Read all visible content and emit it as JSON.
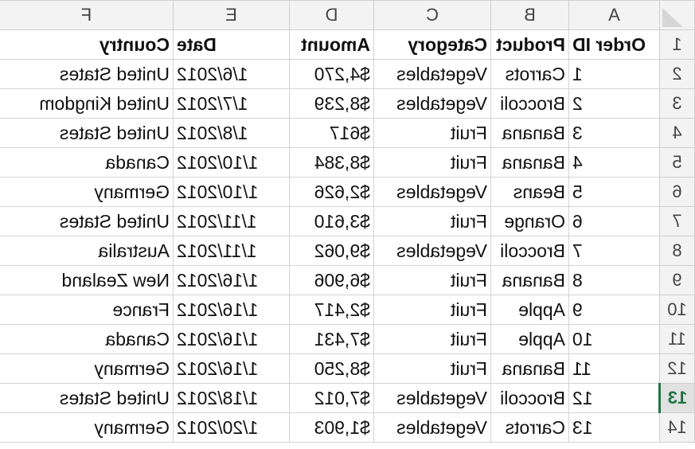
{
  "columns": [
    "A",
    "B",
    "C",
    "D",
    "E",
    "F"
  ],
  "selected_row": "13",
  "rows": [
    {
      "n": "1",
      "cells": [
        "Order ID",
        "Product",
        "Category",
        "Amount",
        "Date",
        "Country"
      ]
    },
    {
      "n": "2",
      "cells": [
        "1",
        "Carrots",
        "Vegetables",
        "$4,270",
        "1/6/2012",
        "United States"
      ]
    },
    {
      "n": "3",
      "cells": [
        "2",
        "Broccoli",
        "Vegetables",
        "$8,239",
        "1/7/2012",
        "United Kingdom"
      ]
    },
    {
      "n": "4",
      "cells": [
        "3",
        "Banana",
        "Fruit",
        "$617",
        "1/8/2012",
        "United States"
      ]
    },
    {
      "n": "5",
      "cells": [
        "4",
        "Banana",
        "Fruit",
        "$8,384",
        "1/10/2012",
        "Canada"
      ]
    },
    {
      "n": "6",
      "cells": [
        "5",
        "Beans",
        "Vegetables",
        "$2,626",
        "1/10/2012",
        "Germany"
      ]
    },
    {
      "n": "7",
      "cells": [
        "6",
        "Orange",
        "Fruit",
        "$3,610",
        "1/11/2012",
        "United States"
      ]
    },
    {
      "n": "8",
      "cells": [
        "7",
        "Broccoli",
        "Vegetables",
        "$9,062",
        "1/11/2012",
        "Australia"
      ]
    },
    {
      "n": "9",
      "cells": [
        "8",
        "Banana",
        "Fruit",
        "$6,906",
        "1/16/2012",
        "New Zealand"
      ]
    },
    {
      "n": "10",
      "cells": [
        "9",
        "Apple",
        "Fruit",
        "$2,417",
        "1/16/2012",
        "France"
      ]
    },
    {
      "n": "11",
      "cells": [
        "10",
        "Apple",
        "Fruit",
        "$7,431",
        "1/16/2012",
        "Canada"
      ]
    },
    {
      "n": "12",
      "cells": [
        "11",
        "Banana",
        "Fruit",
        "$8,250",
        "1/16/2012",
        "Germany"
      ]
    },
    {
      "n": "13",
      "cells": [
        "12",
        "Broccoli",
        "Vegetables",
        "$7,012",
        "1/18/2012",
        "United States"
      ]
    },
    {
      "n": "14",
      "cells": [
        "13",
        "Carrots",
        "Vegetables",
        "$1,903",
        "1/20/2012",
        "Germany"
      ]
    }
  ]
}
